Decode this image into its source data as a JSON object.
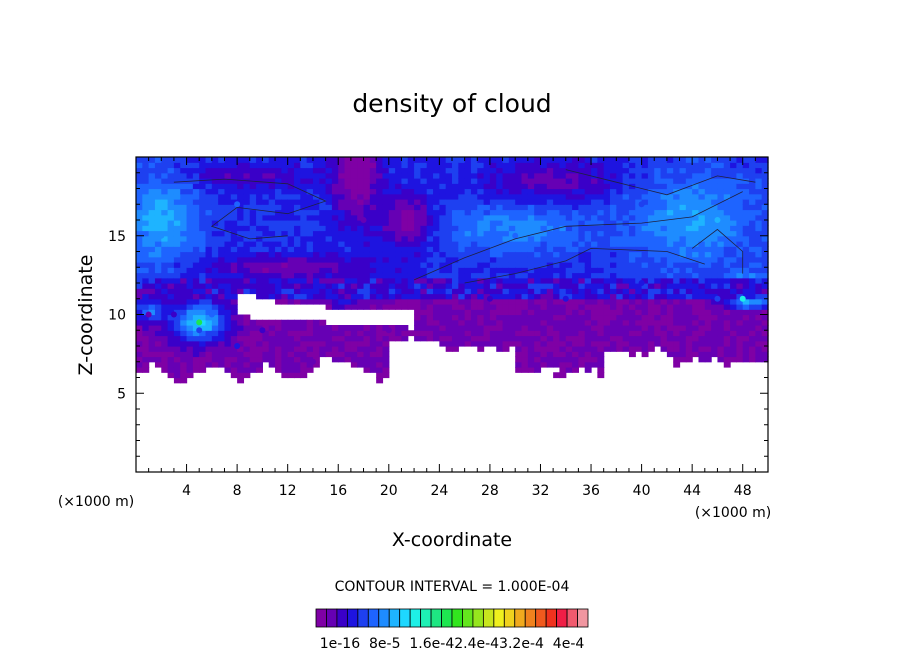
{
  "chart_data": {
    "type": "heatmap",
    "title": "density of cloud",
    "xlabel": "X-coordinate",
    "ylabel": "Z-coordinate",
    "x_unit": "(×1000 m)",
    "y_unit": "(×1000 m)",
    "xlim": [
      0,
      50
    ],
    "ylim": [
      0,
      20
    ],
    "x_ticks": [
      4,
      8,
      12,
      16,
      20,
      24,
      28,
      32,
      36,
      40,
      44,
      48
    ],
    "x_tick_labels": [
      "4",
      "8",
      "12",
      "16",
      "20",
      "24",
      "28",
      "32",
      "36",
      "40",
      "44",
      "48"
    ],
    "y_ticks": [
      5,
      10,
      15
    ],
    "y_tick_labels": [
      "5",
      "10",
      "15"
    ],
    "contour_interval": "CONTOUR INTERVAL = 1.000E-04",
    "colorbar": {
      "labels": [
        "1e-16",
        "8e-5",
        "1.6e-4",
        "2.4e-4",
        "3.2e-4",
        "4e-4"
      ],
      "label_text": "1e-16  8e-5  1.6e-42.4e-43.2e-4  4e-4",
      "colors": [
        "#7f00a5",
        "#6600b4",
        "#3a00c8",
        "#1e14e0",
        "#1e40f0",
        "#1e64ff",
        "#1e8cff",
        "#1eb4ff",
        "#1ed7ff",
        "#1ef0e6",
        "#1ef0b4",
        "#1ee682",
        "#1ee650",
        "#32e61e",
        "#64e61e",
        "#96e61e",
        "#c8e61e",
        "#f0f01e",
        "#f0d21e",
        "#f0aa1e",
        "#f0821e",
        "#f05a1e",
        "#f0321e",
        "#f01e46",
        "#f05a6e",
        "#f096a0"
      ]
    },
    "series": [
      {
        "values": [
          [
            1,
            10,
            1
          ],
          [
            3,
            10,
            2
          ],
          [
            5,
            9,
            4
          ],
          [
            6,
            10,
            5
          ],
          [
            8,
            8,
            3
          ],
          [
            10,
            9,
            2
          ],
          [
            14,
            7,
            1
          ],
          [
            20,
            9,
            1
          ],
          [
            28,
            11,
            2
          ],
          [
            34,
            11,
            3
          ],
          [
            40,
            12,
            3
          ],
          [
            46,
            11,
            4
          ],
          [
            2,
            15,
            6
          ],
          [
            8,
            17,
            5
          ],
          [
            18,
            16,
            1
          ],
          [
            30,
            15,
            5
          ],
          [
            40,
            17,
            4
          ],
          [
            46,
            16,
            7
          ],
          [
            48,
            11,
            9
          ],
          [
            5,
            9.5,
            12
          ]
        ]
      }
    ]
  }
}
